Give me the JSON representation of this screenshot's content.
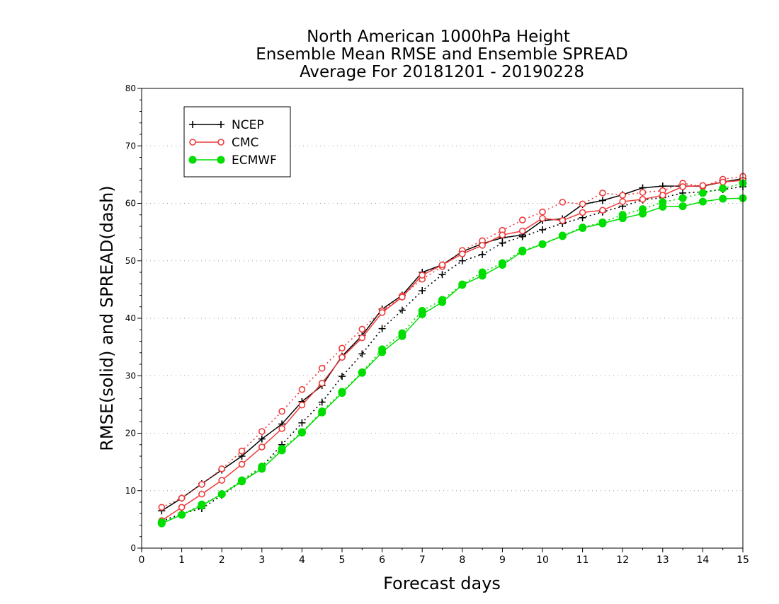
{
  "chart_data": {
    "type": "line",
    "title": [
      "North American 1000hPa Height",
      "Ensemble Mean RMSE and Ensemble SPREAD",
      "Average For 20181201 - 20190228"
    ],
    "xlabel": "Forecast days",
    "ylabel": "RMSE(solid) and SPREAD(dash)",
    "xlim": [
      0,
      15
    ],
    "ylim": [
      0,
      80
    ],
    "xticks": [
      0,
      1,
      2,
      3,
      4,
      5,
      6,
      7,
      8,
      9,
      10,
      11,
      12,
      13,
      14,
      15
    ],
    "yticks": [
      0,
      10,
      20,
      30,
      40,
      50,
      60,
      70,
      80
    ],
    "x": [
      0.5,
      1,
      1.5,
      2,
      2.5,
      3,
      3.5,
      4,
      4.5,
      5,
      5.5,
      6,
      6.5,
      7,
      7.5,
      8,
      8.5,
      9,
      9.5,
      10,
      10.5,
      11,
      11.5,
      12,
      12.5,
      13,
      13.5,
      14,
      14.5,
      15
    ],
    "grid": "y-dotted",
    "legend_position": "top-left",
    "series": [
      {
        "name": "NCEP",
        "color": "#000000",
        "marker": "plus",
        "rmse": [
          6.5,
          8.7,
          11.2,
          13.6,
          16.0,
          19.0,
          21.6,
          25.5,
          28.3,
          33.4,
          37.0,
          41.6,
          44.0,
          48.0,
          49.3,
          51.6,
          53.0,
          54.0,
          54.5,
          57.0,
          57.3,
          59.8,
          60.5,
          61.5,
          62.7,
          63.0,
          63.0,
          63.0,
          63.7,
          64.3
        ],
        "spread": [
          4.7,
          6.0,
          6.9,
          9.2,
          11.6,
          14.2,
          18.0,
          21.8,
          25.4,
          29.9,
          33.8,
          38.2,
          41.4,
          44.8,
          47.6,
          50.0,
          51.1,
          53.1,
          54.2,
          55.4,
          56.5,
          57.5,
          58.5,
          59.5,
          60.6,
          61.0,
          61.8,
          62.0,
          62.4,
          62.9
        ]
      },
      {
        "name": "CMC",
        "color": "#ee3a3a",
        "marker": "circle",
        "rmse": [
          4.8,
          7.1,
          9.4,
          11.8,
          14.6,
          17.6,
          20.8,
          24.9,
          28.7,
          33.2,
          36.6,
          41.0,
          43.7,
          47.5,
          49.3,
          51.2,
          52.7,
          54.5,
          55.2,
          57.4,
          57.0,
          58.4,
          58.8,
          60.3,
          60.7,
          61.4,
          62.9,
          63.1,
          63.7,
          64.0
        ],
        "spread": [
          7.1,
          8.7,
          11.1,
          13.8,
          16.9,
          20.3,
          23.8,
          27.6,
          31.3,
          34.8,
          38.1,
          41.3,
          43.9,
          46.8,
          49.0,
          51.8,
          53.5,
          55.3,
          57.1,
          58.5,
          60.2,
          59.9,
          61.8,
          61.4,
          61.9,
          62.2,
          63.5,
          62.9,
          64.2,
          64.7
        ]
      },
      {
        "name": "ECMWF",
        "color": "#00dd00",
        "marker": "dot",
        "rmse": [
          4.3,
          5.8,
          7.4,
          9.4,
          11.6,
          13.8,
          17.0,
          20.1,
          23.6,
          27.0,
          30.5,
          34.1,
          36.9,
          40.7,
          42.8,
          45.8,
          47.4,
          49.3,
          51.6,
          52.9,
          54.3,
          55.7,
          56.5,
          57.4,
          58.2,
          59.4,
          59.5,
          60.3,
          60.8,
          60.9
        ],
        "spread": [
          4.5,
          5.8,
          7.6,
          9.4,
          11.8,
          14.2,
          17.3,
          20.2,
          23.8,
          27.2,
          30.6,
          34.6,
          37.4,
          41.3,
          43.2,
          45.9,
          48.0,
          49.6,
          51.8,
          52.9,
          54.4,
          55.8,
          56.7,
          58.0,
          59.0,
          60.2,
          60.9,
          61.8,
          62.6,
          63.5
        ]
      }
    ]
  }
}
